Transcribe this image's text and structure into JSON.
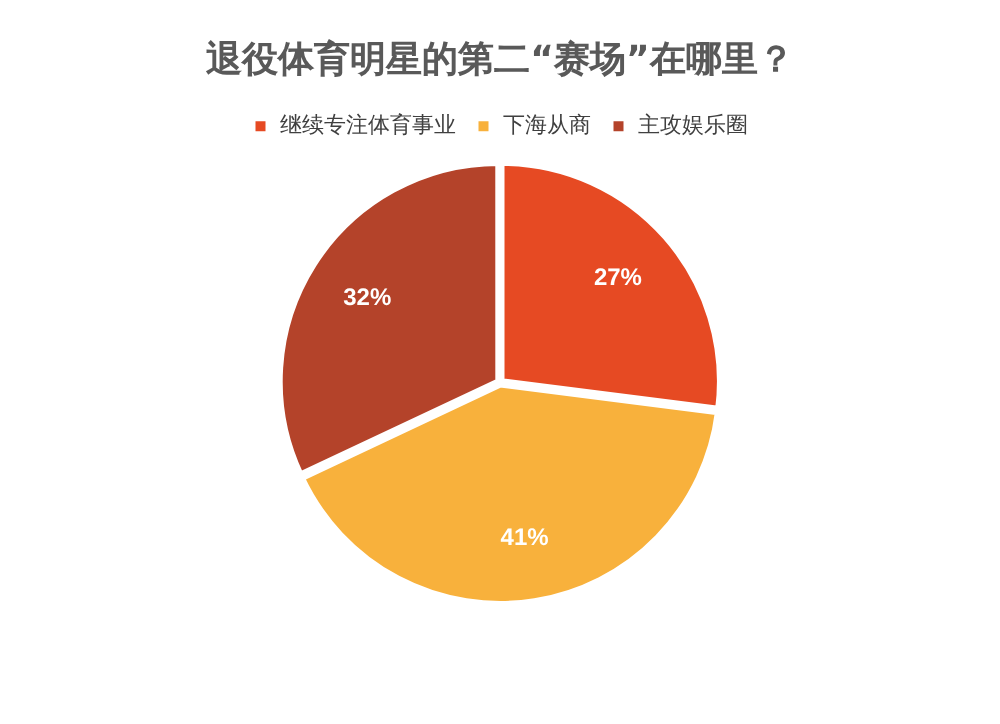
{
  "chart_data": {
    "type": "pie",
    "title": "退役体育明星的第二“赛场”在哪里？",
    "categories": [
      "继续专注体育事业",
      "下海从商",
      "主攻娱乐圈"
    ],
    "values": [
      27,
      41,
      32
    ],
    "colors": [
      "#e64a23",
      "#f8b13c",
      "#b4432a"
    ],
    "value_labels": [
      "27%",
      "41%",
      "32%"
    ],
    "legend": "top"
  }
}
